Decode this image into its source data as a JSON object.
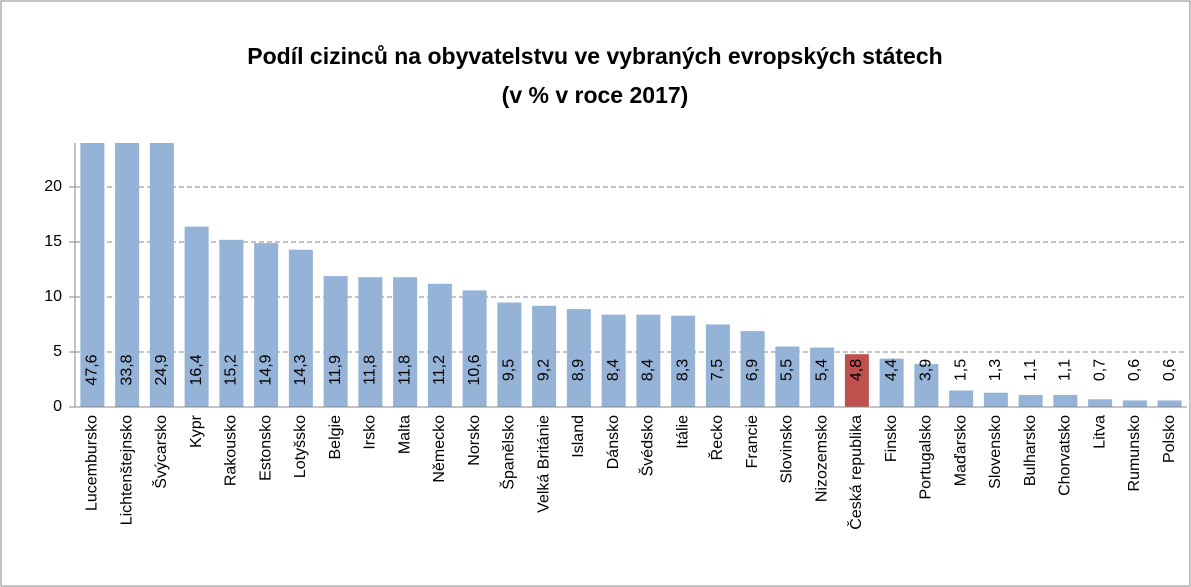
{
  "chart_data": {
    "type": "bar",
    "title": [
      "Podíl cizinců na obyvatelstvu ve vybraných evropských státech",
      "(v % v roce 2017)"
    ],
    "categories": [
      "Lucembursko",
      "Lichtenštejnsko",
      "Švýcarsko",
      "Kypr",
      "Rakousko",
      "Estonsko",
      "Lotyšsko",
      "Belgie",
      "Irsko",
      "Malta",
      "Německo",
      "Norsko",
      "Španělsko",
      "Velká Británie",
      "Island",
      "Dánsko",
      "Švédsko",
      "Itálie",
      "Řecko",
      "Francie",
      "Slovinsko",
      "Nizozemsko",
      "Česká republika",
      "Finsko",
      "Portugalsko",
      "Maďarsko",
      "Slovensko",
      "Bulharsko",
      "Chorvatsko",
      "Litva",
      "Rumunsko",
      "Polsko"
    ],
    "values": [
      47.6,
      33.8,
      24.9,
      16.4,
      15.2,
      14.9,
      14.3,
      11.9,
      11.8,
      11.8,
      11.2,
      10.6,
      9.5,
      9.2,
      8.9,
      8.4,
      8.4,
      8.3,
      7.5,
      6.9,
      5.5,
      5.4,
      4.8,
      4.4,
      3.9,
      1.5,
      1.3,
      1.1,
      1.1,
      0.7,
      0.6,
      0.6
    ],
    "value_labels": [
      "47,6",
      "33,8",
      "24,9",
      "16,4",
      "15,2",
      "14,9",
      "14,3",
      "11,9",
      "11,8",
      "11,8",
      "11,2",
      "10,6",
      "9,5",
      "9,2",
      "8,9",
      "8,4",
      "8,4",
      "8,3",
      "7,5",
      "6,9",
      "5,5",
      "5,4",
      "4,8",
      "4,4",
      "3,9",
      "1,5",
      "1,3",
      "1,1",
      "1,1",
      "0,7",
      "0,6",
      "0,6"
    ],
    "colors": [
      "#95b3d7",
      "#95b3d7",
      "#95b3d7",
      "#95b3d7",
      "#95b3d7",
      "#95b3d7",
      "#95b3d7",
      "#95b3d7",
      "#95b3d7",
      "#95b3d7",
      "#95b3d7",
      "#95b3d7",
      "#95b3d7",
      "#95b3d7",
      "#95b3d7",
      "#95b3d7",
      "#95b3d7",
      "#95b3d7",
      "#95b3d7",
      "#95b3d7",
      "#95b3d7",
      "#95b3d7",
      "#c0504d",
      "#95b3d7",
      "#95b3d7",
      "#95b3d7",
      "#95b3d7",
      "#95b3d7",
      "#95b3d7",
      "#95b3d7",
      "#95b3d7",
      "#95b3d7"
    ],
    "ylim": [
      0,
      24
    ],
    "yticks": [
      0,
      5,
      10,
      15,
      20
    ],
    "grid": true
  }
}
